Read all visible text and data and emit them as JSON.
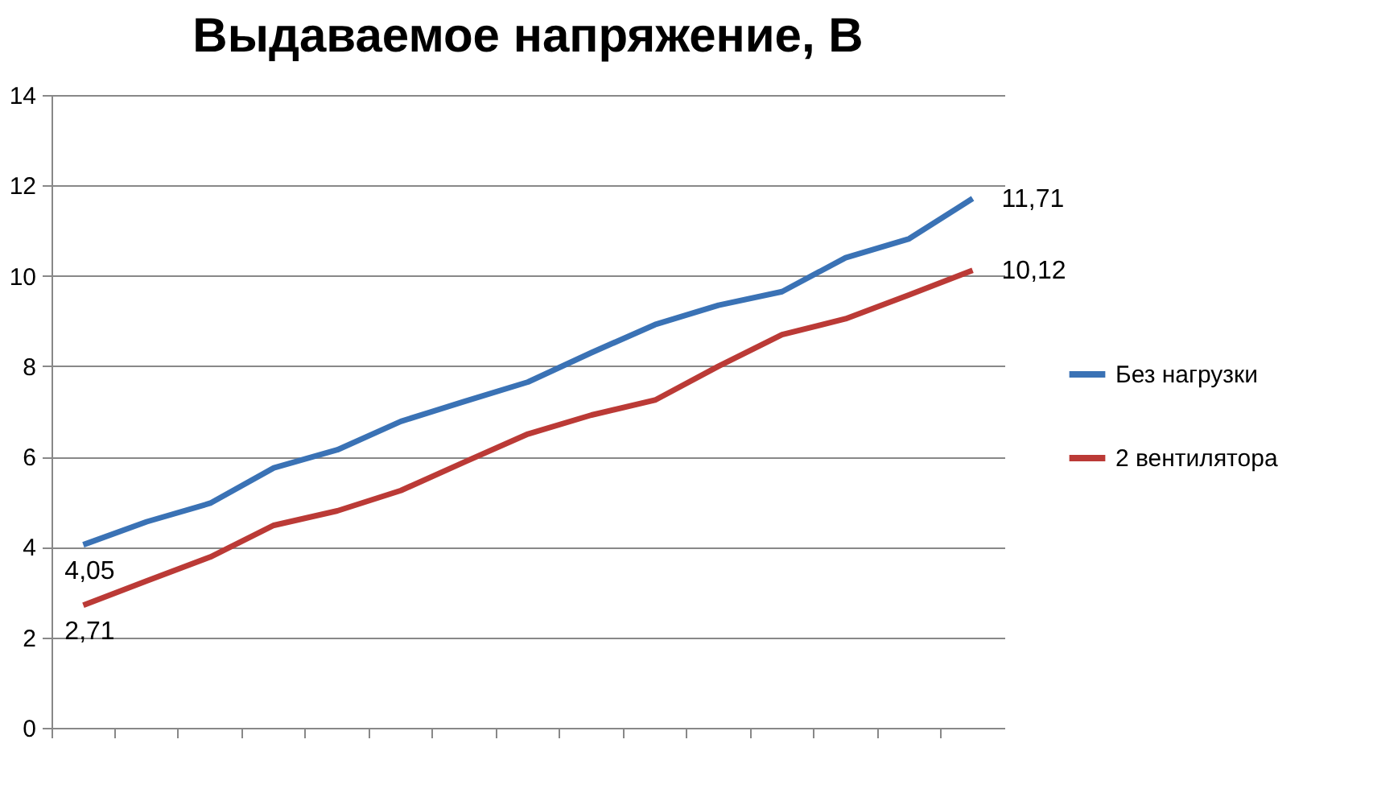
{
  "chart_data": {
    "type": "line",
    "title": "Выдаваемое напряжение, В",
    "categories": [
      null,
      null,
      null,
      null,
      null,
      null,
      null,
      null,
      null,
      null,
      null,
      null,
      null,
      null,
      null
    ],
    "series": [
      {
        "name": "Без нагрузки",
        "color": "#3a72b5",
        "values": [
          4.05,
          4.56,
          4.97,
          5.75,
          6.15,
          6.78,
          7.22,
          7.65,
          8.3,
          8.92,
          9.35,
          9.65,
          10.4,
          10.82,
          11.71
        ],
        "value_labels": [
          "4,05",
          null,
          null,
          null,
          null,
          null,
          null,
          null,
          null,
          null,
          null,
          null,
          null,
          null,
          "11,71"
        ]
      },
      {
        "name": "2 вентилятора",
        "color": "#bb3a36",
        "values": [
          2.71,
          3.25,
          3.78,
          4.48,
          4.8,
          5.25,
          5.88,
          6.5,
          6.92,
          7.25,
          8.0,
          8.7,
          9.05,
          9.58,
          10.12
        ],
        "value_labels": [
          "2,71",
          null,
          null,
          null,
          null,
          null,
          null,
          null,
          null,
          null,
          null,
          null,
          null,
          null,
          "10,12"
        ]
      }
    ],
    "ylim": [
      0,
      14
    ],
    "yticks": [
      0,
      2,
      4,
      6,
      8,
      10,
      12,
      14
    ],
    "grid": "y",
    "legend": "right",
    "marker": "none",
    "line_style": "solid"
  }
}
